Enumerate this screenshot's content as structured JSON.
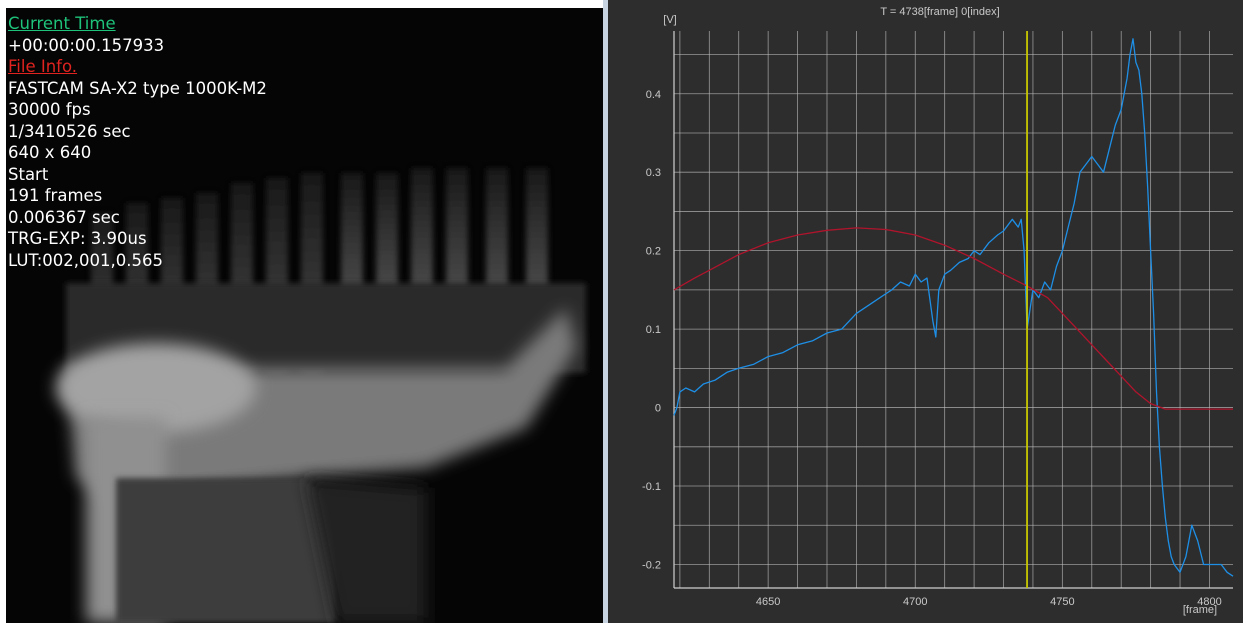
{
  "overlay": {
    "current_time_label": "Current Time",
    "current_time_value": "+00:00:00.157933",
    "file_info_label": "File Info.",
    "camera_model": "FASTCAM SA-X2 type 1000K-M2",
    "frame_rate": "30000 fps",
    "shutter": "1/3410526 sec",
    "resolution": "640 x 640",
    "trigger_mode": "Start",
    "frame_count": "191 frames",
    "duration": "0.006367 sec",
    "trg_exp": "TRG-EXP: 3.90us",
    "lut": "LUT:002,001,0.565"
  },
  "colors": {
    "current_time": "#1ec27a",
    "file_info": "#e0231f",
    "chart_background": "#2d2d2d",
    "grid": "#bdbdbd",
    "cursor": "#c8c800",
    "blue_series": "#1e8fe6",
    "red_series": "#b0142c"
  },
  "chart_data": {
    "type": "line",
    "title": "T = 4738[frame] 0[index]",
    "xlabel": "[frame]",
    "ylabel": "[V]",
    "xlim": [
      4618,
      4808
    ],
    "ylim": [
      -0.23,
      0.48
    ],
    "x_ticks": [
      4650,
      4700,
      4750,
      4800
    ],
    "y_ticks": [
      -0.2,
      -0.1,
      0,
      0.1,
      0.2,
      0.3,
      0.4
    ],
    "x_tick_labels": [
      "4650",
      "4700",
      "4750",
      "4800"
    ],
    "y_tick_labels": [
      "-0.2",
      "-0.1",
      "0",
      "0.1",
      "0.2",
      "0.3",
      "0.4"
    ],
    "x_grid_step": 10,
    "y_grid_step": 0.05,
    "grid": true,
    "cursor_x": 4738,
    "series": [
      {
        "color": "#1e8fe6",
        "x": [
          4618,
          4619,
          4620,
          4622,
          4625,
          4628,
          4632,
          4636,
          4640,
          4645,
          4650,
          4655,
          4660,
          4665,
          4670,
          4675,
          4680,
          4684,
          4688,
          4692,
          4695,
          4698,
          4700,
          4702,
          4704,
          4706,
          4707,
          4708,
          4710,
          4712,
          4715,
          4718,
          4720,
          4722,
          4725,
          4728,
          4730,
          4733,
          4735,
          4736,
          4737,
          4738,
          4740,
          4742,
          4744,
          4746,
          4748,
          4750,
          4752,
          4754,
          4756,
          4758,
          4760,
          4762,
          4764,
          4766,
          4768,
          4770,
          4772,
          4773,
          4774,
          4775,
          4776,
          4777,
          4778,
          4779,
          4780,
          4781,
          4782,
          4783,
          4784,
          4785,
          4786,
          4787,
          4788,
          4790,
          4792,
          4794,
          4796,
          4798,
          4800,
          4802,
          4804,
          4806,
          4808
        ],
        "y": [
          -0.01,
          0.0,
          0.02,
          0.025,
          0.02,
          0.03,
          0.035,
          0.045,
          0.05,
          0.055,
          0.065,
          0.07,
          0.08,
          0.085,
          0.095,
          0.1,
          0.12,
          0.13,
          0.14,
          0.15,
          0.16,
          0.155,
          0.17,
          0.16,
          0.165,
          0.11,
          0.09,
          0.15,
          0.17,
          0.175,
          0.185,
          0.19,
          0.2,
          0.195,
          0.21,
          0.22,
          0.225,
          0.24,
          0.23,
          0.24,
          0.2,
          0.1,
          0.15,
          0.14,
          0.16,
          0.15,
          0.18,
          0.2,
          0.23,
          0.26,
          0.3,
          0.31,
          0.32,
          0.31,
          0.3,
          0.33,
          0.36,
          0.38,
          0.42,
          0.45,
          0.47,
          0.44,
          0.43,
          0.4,
          0.35,
          0.28,
          0.2,
          0.12,
          0.02,
          -0.05,
          -0.1,
          -0.14,
          -0.17,
          -0.19,
          -0.2,
          -0.21,
          -0.19,
          -0.15,
          -0.17,
          -0.2,
          -0.2,
          -0.2,
          -0.2,
          -0.21,
          -0.215
        ]
      },
      {
        "color": "#b0142c",
        "x": [
          4618,
          4625,
          4630,
          4640,
          4650,
          4660,
          4670,
          4680,
          4690,
          4700,
          4710,
          4720,
          4730,
          4738,
          4745,
          4750,
          4755,
          4760,
          4765,
          4770,
          4775,
          4780,
          4785,
          4790,
          4795,
          4800,
          4808
        ],
        "y": [
          0.15,
          0.165,
          0.175,
          0.195,
          0.21,
          0.22,
          0.226,
          0.229,
          0.227,
          0.22,
          0.207,
          0.19,
          0.17,
          0.155,
          0.14,
          0.12,
          0.1,
          0.08,
          0.06,
          0.04,
          0.02,
          0.005,
          -0.002,
          -0.002,
          -0.002,
          -0.002,
          -0.002
        ]
      }
    ]
  }
}
